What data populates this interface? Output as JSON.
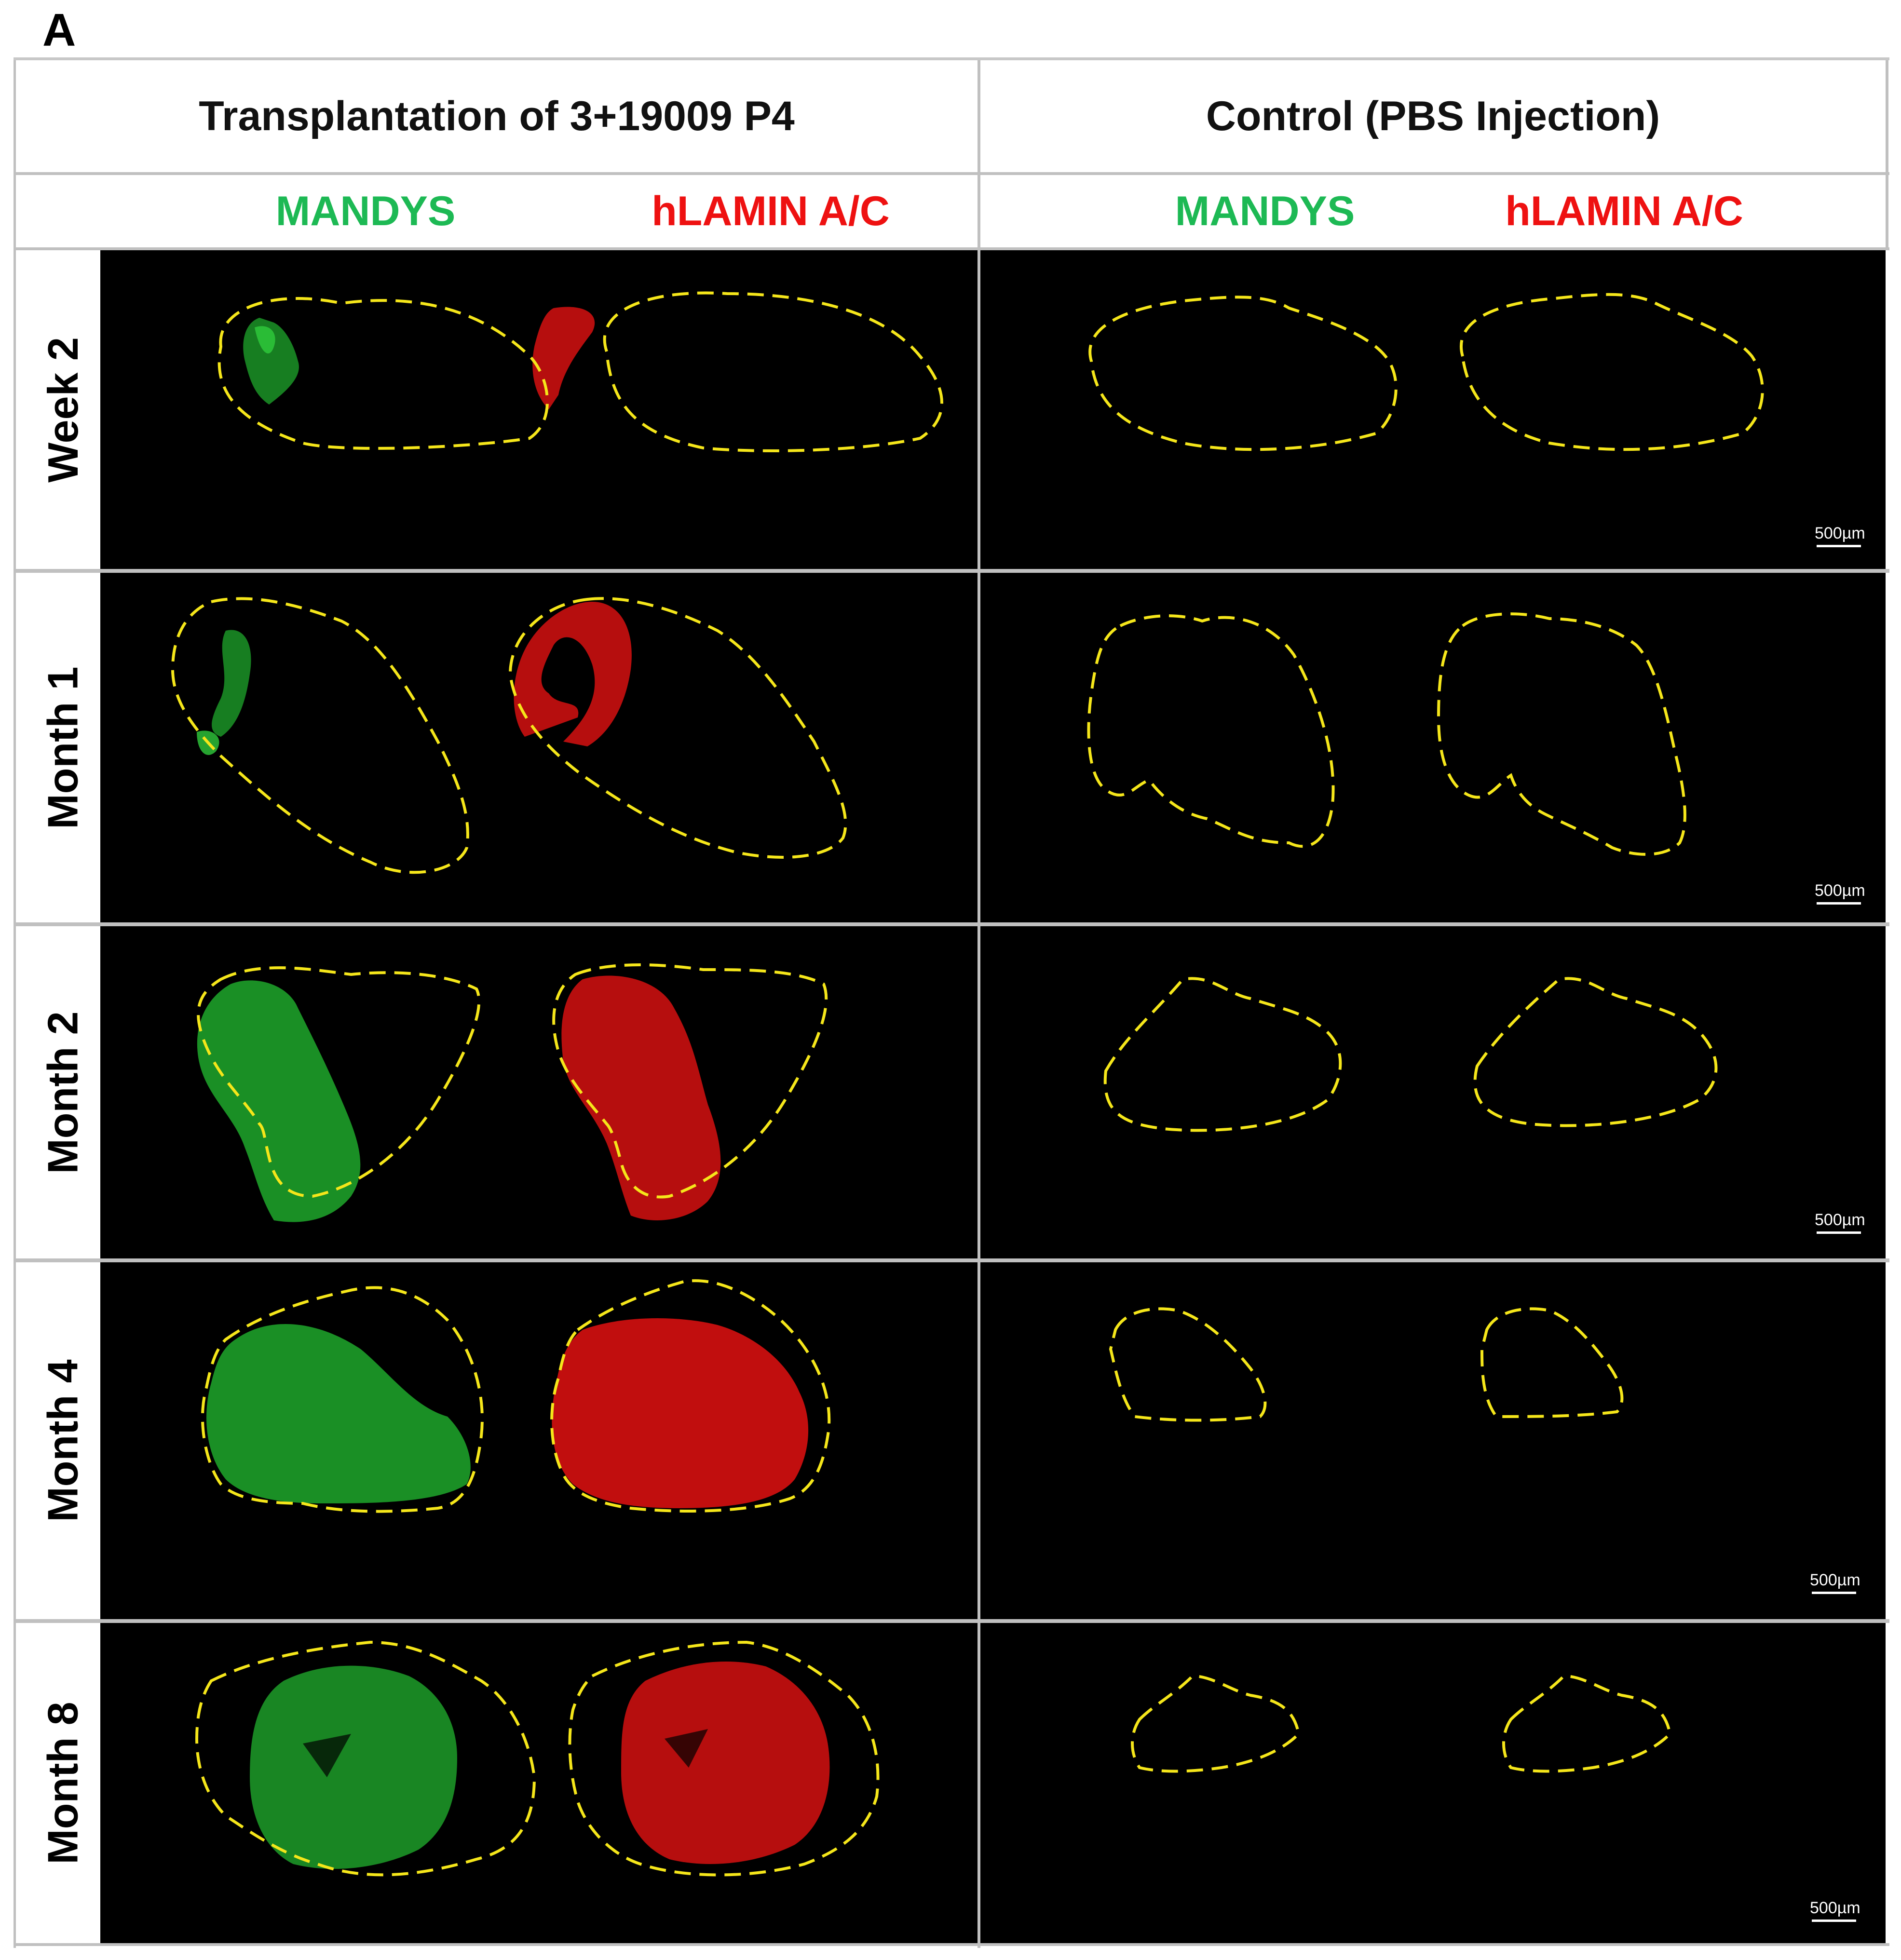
{
  "panel_letter": "A",
  "headers": {
    "group_left": "Transplantation of 3+19009  P4",
    "group_right": "Control (PBS Injection)",
    "stains": [
      {
        "label": "MANDYS",
        "color": "#1db954"
      },
      {
        "label": "hLAMIN A/C",
        "color": "#ee1111"
      },
      {
        "label": "MANDYS",
        "color": "#1db954"
      },
      {
        "label": "hLAMIN A/C",
        "color": "#ee1111"
      }
    ]
  },
  "rows": [
    {
      "label": "Week 2",
      "scale_bar": "500µm"
    },
    {
      "label": "Month 1",
      "scale_bar": "500µm"
    },
    {
      "label": "Month 2",
      "scale_bar": "500µm"
    },
    {
      "label": "Month 4",
      "scale_bar": "500µm"
    },
    {
      "label": "Month 8",
      "scale_bar": "500µm"
    }
  ],
  "colors": {
    "outline": "#f5e61a",
    "green_signal": "#1fa82c",
    "red_signal": "#d61010",
    "background": "#000000"
  }
}
